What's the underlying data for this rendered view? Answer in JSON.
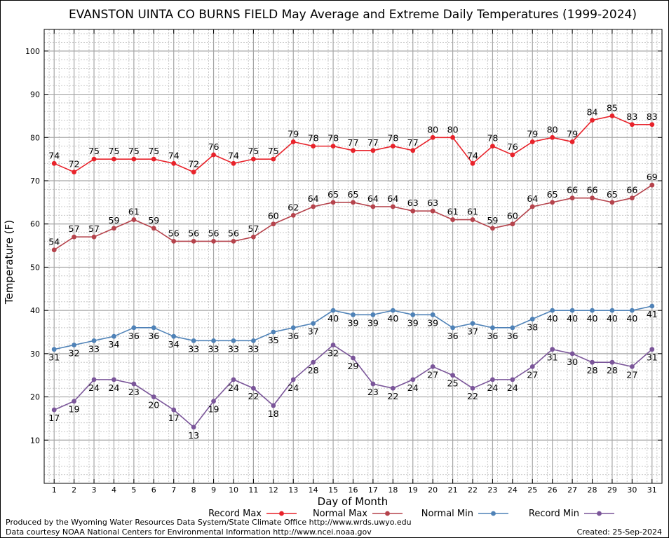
{
  "chart_data": {
    "type": "line",
    "title": "EVANSTON UINTA CO BURNS FIELD May Average and Extreme Daily Temperatures (1999-2024)",
    "xlabel": "Day of Month",
    "ylabel": "Temperature (F)",
    "xlim": [
      0.5,
      31.5
    ],
    "ylim": [
      0,
      105
    ],
    "yticks": [
      10,
      20,
      30,
      40,
      50,
      60,
      70,
      80,
      90,
      100
    ],
    "x": [
      1,
      2,
      3,
      4,
      5,
      6,
      7,
      8,
      9,
      10,
      11,
      12,
      13,
      14,
      15,
      16,
      17,
      18,
      19,
      20,
      21,
      22,
      23,
      24,
      25,
      26,
      27,
      28,
      29,
      30,
      31
    ],
    "grid": true,
    "legend_position": "bottom",
    "series": [
      {
        "name": "Record Max",
        "color": "#e8222a",
        "label_position": "above",
        "values": [
          74,
          72,
          75,
          75,
          75,
          75,
          74,
          72,
          76,
          74,
          75,
          75,
          79,
          78,
          78,
          77,
          77,
          78,
          77,
          80,
          80,
          74,
          78,
          76,
          79,
          80,
          79,
          84,
          85,
          83,
          83
        ]
      },
      {
        "name": "Normal Max",
        "color": "#b5434c",
        "label_position": "above",
        "values": [
          54,
          57,
          57,
          59,
          61,
          59,
          56,
          56,
          56,
          56,
          57,
          60,
          62,
          64,
          65,
          65,
          64,
          64,
          63,
          63,
          61,
          61,
          59,
          60,
          64,
          65,
          66,
          66,
          65,
          66,
          69
        ]
      },
      {
        "name": "Normal Min",
        "color": "#4f82b7",
        "label_position": "below",
        "values": [
          31,
          32,
          33,
          34,
          36,
          36,
          34,
          33,
          33,
          33,
          33,
          35,
          36,
          37,
          40,
          39,
          39,
          40,
          39,
          39,
          36,
          37,
          36,
          36,
          38,
          40,
          40,
          40,
          40,
          40,
          41
        ]
      },
      {
        "name": "Record Min",
        "color": "#7a5599",
        "label_position": "below",
        "values": [
          17,
          19,
          24,
          24,
          23,
          20,
          17,
          13,
          19,
          24,
          22,
          18,
          24,
          28,
          32,
          29,
          23,
          22,
          24,
          27,
          25,
          22,
          24,
          24,
          27,
          31,
          30,
          28,
          28,
          27,
          31
        ]
      }
    ]
  },
  "footer": {
    "produced_by": "Produced by the Wyoming Water Resources Data System/State Climate Office http://www.wrds.uwyo.edu",
    "data_courtesy": "Data courtesy NOAA National Centers for Environmental Information http://www.ncei.noaa.gov",
    "created": "Created:  25-Sep-2024"
  }
}
